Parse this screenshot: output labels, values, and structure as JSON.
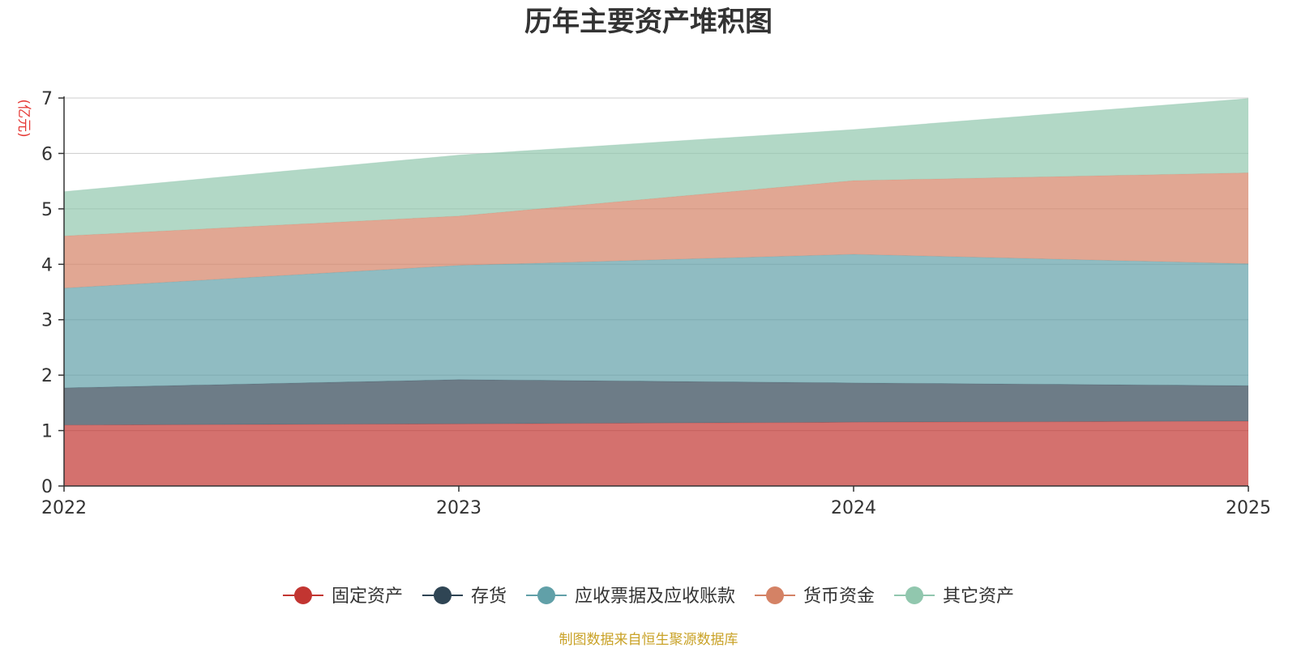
{
  "chart_data": {
    "type": "area",
    "stacked": true,
    "title": "历年主要资产堆积图",
    "ylabel": "(亿元)",
    "xlabel": "",
    "x": [
      "2022",
      "2023",
      "2024",
      "2025"
    ],
    "ylim": [
      0,
      7
    ],
    "yticks": [
      0,
      1,
      2,
      3,
      4,
      5,
      6,
      7
    ],
    "grid": true,
    "legend_position": "bottom",
    "series": [
      {
        "name": "固定资产",
        "color": "#c23531",
        "values": [
          1.1,
          1.12,
          1.15,
          1.17
        ]
      },
      {
        "name": "存货",
        "color": "#2f4554",
        "values": [
          0.67,
          0.8,
          0.71,
          0.64
        ]
      },
      {
        "name": "应收票据及应收账款",
        "color": "#61a0a8",
        "values": [
          1.8,
          2.06,
          2.32,
          2.2
        ]
      },
      {
        "name": "货币资金",
        "color": "#d48265",
        "values": [
          0.94,
          0.89,
          1.33,
          1.64
        ]
      },
      {
        "name": "其它资产",
        "color": "#91c7ae",
        "values": [
          0.8,
          1.1,
          0.92,
          1.34
        ]
      }
    ],
    "source": "制图数据来自恒生聚源数据库"
  }
}
